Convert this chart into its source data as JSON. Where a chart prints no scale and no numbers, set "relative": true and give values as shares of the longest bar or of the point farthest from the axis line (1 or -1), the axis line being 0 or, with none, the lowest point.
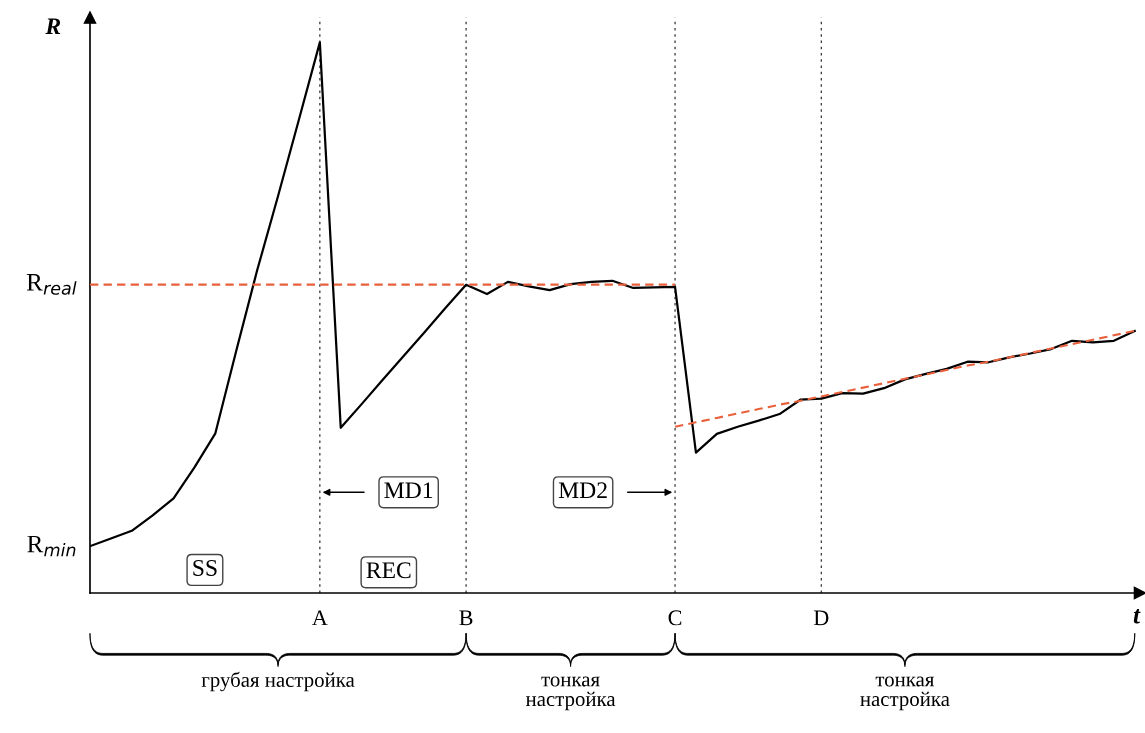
{
  "chart_data": {
    "type": "line",
    "relative": true,
    "xlabel": "t",
    "ylabel": "R",
    "tick_labels": "x",
    "categories": [
      null,
      null,
      null,
      null,
      null,
      null,
      null,
      null,
      null,
      null,
      null,
      "A",
      null,
      null,
      null,
      null,
      null,
      null,
      "B",
      null,
      null,
      null,
      null,
      null,
      null,
      null,
      null,
      null,
      "C",
      null,
      null,
      null,
      null,
      null,
      null,
      "D",
      null,
      null,
      null,
      null,
      null,
      null,
      null,
      null,
      null,
      null,
      null,
      null,
      null,
      null,
      null
    ],
    "series": [
      {
        "color": "#000000",
        "line_style": "solid",
        "values": [
          0.085,
          0.099,
          0.113,
          0.141,
          0.172,
          0.228,
          0.29,
          0.44,
          0.586,
          0.721,
          0.86,
          1.0,
          0.3,
          0.343,
          0.387,
          0.43,
          0.473,
          0.517,
          0.56,
          0.543,
          0.565,
          0.557,
          0.55,
          0.561,
          0.565,
          0.567,
          0.554,
          0.555,
          0.556,
          0.255,
          0.289,
          0.302,
          0.313,
          0.325,
          0.351,
          0.353,
          0.363,
          0.362,
          0.372,
          0.388,
          0.398,
          0.407,
          0.42,
          0.419,
          0.428,
          0.435,
          0.443,
          0.458,
          0.455,
          0.458,
          0.476
        ]
      },
      {
        "color": "#e8603c",
        "line_style": "dashed",
        "values": [
          0.56,
          0.56,
          0.56,
          0.56,
          0.56,
          0.56,
          0.56,
          0.56,
          0.56,
          0.56,
          0.56,
          0.56,
          0.56,
          0.56,
          0.56,
          0.56,
          0.56,
          0.56,
          0.56,
          0.56,
          0.56,
          0.56,
          0.56,
          0.56,
          0.56,
          0.56,
          0.56,
          0.56,
          0.56,
          null,
          null,
          null,
          null,
          null,
          null,
          null,
          null,
          null,
          null,
          null,
          null,
          null,
          null,
          null,
          null,
          null,
          null,
          null,
          null,
          null,
          null
        ]
      },
      {
        "color": "#e8603c",
        "line_style": "dashed",
        "values": [
          null,
          null,
          null,
          null,
          null,
          null,
          null,
          null,
          null,
          null,
          null,
          null,
          null,
          null,
          null,
          null,
          null,
          null,
          null,
          null,
          null,
          null,
          null,
          null,
          null,
          null,
          null,
          null,
          0.302,
          0.31,
          0.318,
          0.326,
          0.334,
          0.342,
          0.349,
          0.357,
          0.365,
          0.373,
          0.381,
          0.389,
          0.397,
          0.405,
          0.413,
          0.42,
          0.428,
          0.436,
          0.444,
          0.452,
          0.46,
          0.468,
          0.476
        ]
      }
    ],
    "ref_lines": [
      {
        "axis": "x",
        "value": "A",
        "color": "#333333",
        "line_style": "dotted"
      },
      {
        "axis": "x",
        "value": "B",
        "color": "#333333",
        "line_style": "dotted"
      },
      {
        "axis": "x",
        "value": "C",
        "color": "#333333",
        "line_style": "dotted"
      },
      {
        "axis": "x",
        "value": "D",
        "color": "#333333",
        "line_style": "dotted"
      }
    ],
    "annotations": [
      "R$_{real}$",
      "R$_{min}$",
      "SS",
      "REC",
      "MD1",
      "MD2",
      "грубая настройка",
      "тонкая\nнастройка",
      "тонкая\nнастройка"
    ]
  }
}
